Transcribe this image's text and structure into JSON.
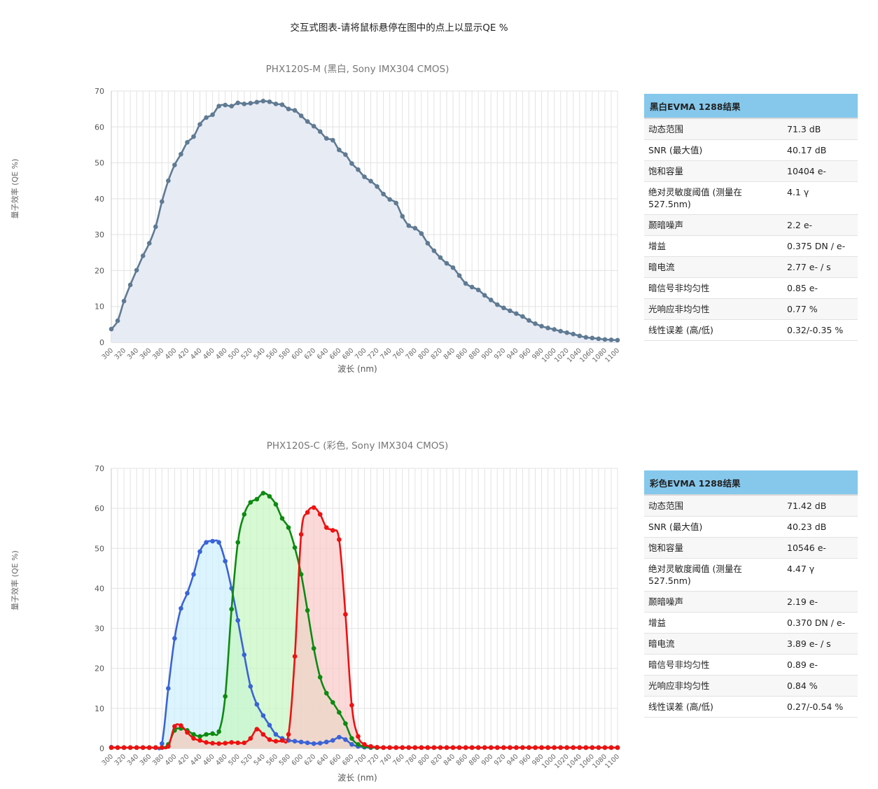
{
  "page": {
    "heading": "交互式图表-请将鼠标悬停在图中的点上以显示QE %"
  },
  "colors": {
    "mono": "#5f7a93",
    "blue": "#3a63d6",
    "green": "#0e8a12",
    "red": "#ee1111",
    "table_header": "#86c8ec"
  },
  "chart_data": [
    {
      "type": "area",
      "title": "PHX120S-M (黑白, Sony IMX304 CMOS)",
      "xlabel": "波长 (nm)",
      "ylabel": "量子效率 (QE %)",
      "xlim": [
        300,
        1100
      ],
      "ylim": [
        0,
        70
      ],
      "xticks": [
        300,
        320,
        340,
        360,
        380,
        400,
        420,
        440,
        460,
        480,
        500,
        520,
        540,
        560,
        580,
        600,
        620,
        640,
        660,
        680,
        700,
        720,
        740,
        760,
        780,
        800,
        820,
        840,
        860,
        880,
        900,
        920,
        940,
        960,
        980,
        1000,
        1020,
        1040,
        1060,
        1080,
        1100
      ],
      "yticks": [
        0,
        10,
        20,
        30,
        40,
        50,
        60,
        70
      ],
      "grid": true,
      "x": [
        300,
        310,
        320,
        330,
        340,
        350,
        360,
        370,
        380,
        390,
        400,
        410,
        420,
        430,
        440,
        450,
        460,
        470,
        480,
        490,
        500,
        510,
        520,
        530,
        540,
        550,
        560,
        570,
        580,
        590,
        600,
        610,
        620,
        630,
        640,
        650,
        660,
        670,
        680,
        690,
        700,
        710,
        720,
        730,
        740,
        750,
        760,
        770,
        780,
        790,
        800,
        810,
        820,
        830,
        840,
        850,
        860,
        870,
        880,
        890,
        900,
        910,
        920,
        930,
        940,
        950,
        960,
        970,
        980,
        990,
        1000,
        1010,
        1020,
        1030,
        1040,
        1050,
        1060,
        1070,
        1080,
        1090,
        1100
      ],
      "series": [
        {
          "color": "#5f7a93",
          "fill": "#e7ebf4",
          "values": [
            3.7,
            6,
            11.5,
            16,
            20.1,
            24.1,
            27.6,
            32.2,
            39.2,
            45,
            49.4,
            52.4,
            55.7,
            57.3,
            60.7,
            62.6,
            63.4,
            65.8,
            66.1,
            65.8,
            66.7,
            66.4,
            66.6,
            66.9,
            67.2,
            67,
            66.4,
            66.2,
            65,
            64.6,
            63.1,
            61.5,
            60.2,
            58.7,
            56.8,
            56.3,
            53.6,
            52.3,
            49.8,
            48.1,
            46.1,
            44.9,
            43.4,
            41.3,
            39.8,
            38.8,
            35.1,
            32.5,
            31.8,
            30.3,
            27.6,
            25.5,
            23.6,
            22,
            20.8,
            18.6,
            16.4,
            15.4,
            14.6,
            13.1,
            11.8,
            10.5,
            9.6,
            8.8,
            8,
            7.2,
            6.1,
            5.2,
            4.5,
            4,
            3.6,
            3.1,
            2.7,
            2.3,
            1.8,
            1.4,
            1.2,
            1,
            0.8,
            0.7,
            0.6
          ]
        }
      ]
    },
    {
      "type": "area",
      "title": "PHX120S-C (彩色, Sony IMX304 CMOS)",
      "xlabel": "波长 (nm)",
      "ylabel": "量子效率 (QE %)",
      "xlim": [
        300,
        1100
      ],
      "ylim": [
        0,
        70
      ],
      "xticks": [
        300,
        320,
        340,
        360,
        380,
        400,
        420,
        440,
        460,
        480,
        500,
        520,
        540,
        560,
        580,
        600,
        620,
        640,
        660,
        680,
        700,
        720,
        740,
        760,
        780,
        800,
        820,
        840,
        860,
        880,
        900,
        920,
        940,
        960,
        980,
        1000,
        1020,
        1040,
        1060,
        1080,
        1100
      ],
      "yticks": [
        0,
        10,
        20,
        30,
        40,
        50,
        60,
        70
      ],
      "grid": true,
      "x": [
        300,
        310,
        320,
        330,
        340,
        350,
        360,
        370,
        380,
        390,
        400,
        410,
        420,
        430,
        440,
        450,
        460,
        470,
        480,
        490,
        500,
        510,
        520,
        530,
        540,
        550,
        560,
        570,
        580,
        590,
        600,
        610,
        620,
        630,
        640,
        650,
        660,
        670,
        680,
        690,
        700,
        710,
        720,
        730,
        740,
        750,
        760,
        770,
        780,
        790,
        800,
        810,
        820,
        830,
        840,
        850,
        860,
        870,
        880,
        890,
        900,
        910,
        920,
        930,
        940,
        950,
        960,
        970,
        980,
        990,
        1000,
        1010,
        1020,
        1030,
        1040,
        1050,
        1060,
        1070,
        1080,
        1090,
        1100
      ],
      "series": [
        {
          "color": "#3a63d6",
          "fill": "#cdeffc",
          "values": [
            0.3,
            0.2,
            0.2,
            0.2,
            0.2,
            0.2,
            0.2,
            0.2,
            1.2,
            15,
            27.5,
            35,
            38.8,
            43.5,
            49.2,
            51.5,
            51.8,
            51.5,
            46.8,
            40,
            32,
            23.4,
            15.5,
            11,
            8.2,
            5.8,
            3.5,
            2.5,
            2,
            1.8,
            1.6,
            1.4,
            1.2,
            1.3,
            1.6,
            2,
            2.8,
            2.2,
            1,
            0.5,
            0.3,
            0.2,
            0.2,
            0.2,
            0.2,
            0.2,
            0.2,
            0.2,
            0.2,
            0.2,
            0.2,
            0.2,
            0.2,
            0.2,
            0.2,
            0.2,
            0.2,
            0.2,
            0.2,
            0.2,
            0.2,
            0.2,
            0.2,
            0.2,
            0.2,
            0.2,
            0.2,
            0.2,
            0.2,
            0.2,
            0.2,
            0.2,
            0.2,
            0.2,
            0.2,
            0.2,
            0.2,
            0.2,
            0.2,
            0.2,
            0.2
          ]
        },
        {
          "color": "#0e8a12",
          "fill": "#c6f7c0",
          "values": [
            0.2,
            0.2,
            0.2,
            0.2,
            0.2,
            0.2,
            0.2,
            0.2,
            0.2,
            1,
            4.5,
            5,
            4.5,
            3.5,
            3,
            3.5,
            3.7,
            4.2,
            13,
            34.8,
            51.5,
            58.5,
            61.5,
            62.3,
            63.8,
            63,
            61,
            57.5,
            55.2,
            50.2,
            43.5,
            34.5,
            25,
            17.8,
            13.8,
            11.5,
            9,
            6.2,
            2.5,
            1,
            0.5,
            0.3,
            0.2,
            0.2,
            0.2,
            0.2,
            0.2,
            0.2,
            0.2,
            0.2,
            0.2,
            0.2,
            0.2,
            0.2,
            0.2,
            0.2,
            0.2,
            0.2,
            0.2,
            0.2,
            0.2,
            0.2,
            0.2,
            0.2,
            0.2,
            0.2,
            0.2,
            0.2,
            0.2,
            0.2,
            0.2,
            0.2,
            0.2,
            0.2,
            0.2,
            0.2,
            0.2,
            0.2,
            0.2,
            0.2,
            0.2
          ]
        },
        {
          "color": "#ee1111",
          "fill": "#f9c9c9",
          "values": [
            0.2,
            0.2,
            0.2,
            0.2,
            0.2,
            0.2,
            0.2,
            0.2,
            0.2,
            0.5,
            5.5,
            5.7,
            4,
            2.5,
            2,
            1.5,
            1.3,
            1.2,
            1.3,
            1.5,
            1.4,
            1.4,
            2.5,
            4.8,
            3.5,
            2.2,
            1.8,
            2,
            3.5,
            23,
            53.5,
            59,
            60.2,
            58.5,
            55.2,
            54.5,
            52.2,
            33.5,
            10.8,
            3,
            1,
            0.5,
            0.3,
            0.2,
            0.2,
            0.2,
            0.2,
            0.2,
            0.2,
            0.2,
            0.2,
            0.2,
            0.2,
            0.2,
            0.2,
            0.2,
            0.2,
            0.2,
            0.2,
            0.2,
            0.2,
            0.2,
            0.2,
            0.2,
            0.2,
            0.2,
            0.2,
            0.2,
            0.2,
            0.2,
            0.2,
            0.2,
            0.2,
            0.2,
            0.2,
            0.2,
            0.2,
            0.2,
            0.2,
            0.2,
            0.2
          ]
        }
      ]
    }
  ],
  "tables": [
    {
      "header": "黑白EVMA 1288结果",
      "rows": [
        {
          "k": "动态范围",
          "v": "71.3 dB"
        },
        {
          "k": "SNR (最大值)",
          "v": "40.17 dB"
        },
        {
          "k": "饱和容量",
          "v": "10404 e-"
        },
        {
          "k": "绝对灵敏度阈值 (测量在527.5nm)",
          "v": "4.1 γ"
        },
        {
          "k": "颞暗噪声",
          "v": "2.2 e-"
        },
        {
          "k": "增益",
          "v": "0.375 DN / e-"
        },
        {
          "k": "暗电流",
          "v": "2.77 e- / s"
        },
        {
          "k": "暗信号非均匀性",
          "v": "0.85 e-"
        },
        {
          "k": "光响应非均匀性",
          "v": "0.77 %"
        },
        {
          "k": "线性误差 (高/低)",
          "v": "0.32/-0.35 %"
        }
      ]
    },
    {
      "header": "彩色EVMA 1288结果",
      "rows": [
        {
          "k": "动态范围",
          "v": "71.42 dB"
        },
        {
          "k": "SNR (最大值)",
          "v": "40.23 dB"
        },
        {
          "k": "饱和容量",
          "v": "10546 e-"
        },
        {
          "k": "绝对灵敏度阈值 (测量在527.5nm)",
          "v": "4.47 γ"
        },
        {
          "k": "颞暗噪声",
          "v": "2.19 e-"
        },
        {
          "k": "增益",
          "v": "0.370 DN / e-"
        },
        {
          "k": "暗电流",
          "v": "3.89 e- / s"
        },
        {
          "k": "暗信号非均匀性",
          "v": "0.89 e-"
        },
        {
          "k": "光响应非均匀性",
          "v": "0.84 %"
        },
        {
          "k": "线性误差 (高/低)",
          "v": "0.27/-0.54 %"
        }
      ]
    }
  ]
}
